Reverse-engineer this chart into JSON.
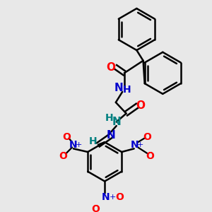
{
  "bg_color": "#e8e8e8",
  "bond_color": "#000000",
  "oxygen_color": "#ff0000",
  "nitrogen_color": "#0000cc",
  "teal_color": "#008080",
  "line_width": 1.8,
  "figsize": [
    3.0,
    3.0
  ],
  "dpi": 100,
  "xlim": [
    0,
    300
  ],
  "ylim": [
    0,
    300
  ]
}
